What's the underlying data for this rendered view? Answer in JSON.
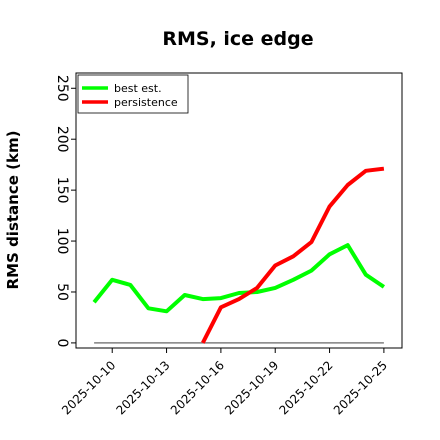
{
  "chart_data": {
    "type": "line",
    "title": "RMS, ice edge",
    "xlabel": "",
    "ylabel": "RMS distance (km)",
    "x": [
      "2025-10-09",
      "2025-10-10",
      "2025-10-11",
      "2025-10-12",
      "2025-10-13",
      "2025-10-14",
      "2025-10-15",
      "2025-10-16",
      "2025-10-17",
      "2025-10-18",
      "2025-10-19",
      "2025-10-20",
      "2025-10-21",
      "2025-10-22",
      "2025-10-23",
      "2025-10-24",
      "2025-10-25"
    ],
    "xticks": [
      "2025-10-10",
      "2025-10-13",
      "2025-10-16",
      "2025-10-19",
      "2025-10-22",
      "2025-10-25"
    ],
    "xlim": [
      "2025-10-08",
      "2025-10-26"
    ],
    "ylim": [
      -5,
      265
    ],
    "yticks": [
      0,
      50,
      100,
      150,
      200,
      250
    ],
    "grid": false,
    "legend_position": "top-left",
    "series": [
      {
        "name": "best est.",
        "color": "#00ff00",
        "values": [
          40,
          62,
          57,
          34,
          31,
          47,
          43,
          44,
          49,
          50,
          54,
          62,
          71,
          87,
          96,
          67,
          55
        ]
      },
      {
        "name": "persistence",
        "color": "#ff0000",
        "values": [
          null,
          null,
          null,
          null,
          null,
          null,
          0,
          35,
          43,
          54,
          76,
          85,
          99,
          134,
          155,
          169,
          171
        ]
      }
    ],
    "zero_line": {
      "value": 0,
      "color": "#808080"
    }
  }
}
